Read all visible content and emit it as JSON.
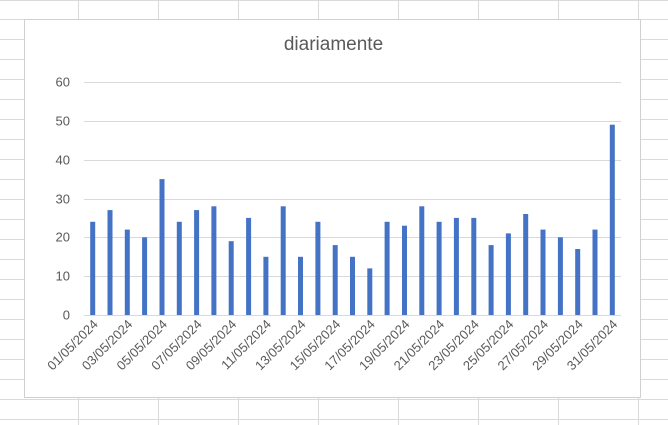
{
  "chart_data": {
    "type": "bar",
    "title": "diariamente",
    "xlabel": "",
    "ylabel": "",
    "ylim": [
      0,
      60
    ],
    "yticks": [
      0,
      10,
      20,
      30,
      40,
      50,
      60
    ],
    "grid": true,
    "bar_color": "#4472C4",
    "categories": [
      "01/05/2024",
      "02/05/2024",
      "03/05/2024",
      "04/05/2024",
      "05/05/2024",
      "06/05/2024",
      "07/05/2024",
      "08/05/2024",
      "09/05/2024",
      "10/05/2024",
      "11/05/2024",
      "12/05/2024",
      "13/05/2024",
      "14/05/2024",
      "15/05/2024",
      "16/05/2024",
      "17/05/2024",
      "18/05/2024",
      "19/05/2024",
      "20/05/2024",
      "21/05/2024",
      "22/05/2024",
      "23/05/2024",
      "24/05/2024",
      "25/05/2024",
      "26/05/2024",
      "27/05/2024",
      "28/05/2024",
      "29/05/2024",
      "30/05/2024",
      "31/05/2024"
    ],
    "shown_tick_labels": [
      "01/05/2024",
      "03/05/2024",
      "05/05/2024",
      "07/05/2024",
      "09/05/2024",
      "11/05/2024",
      "13/05/2024",
      "15/05/2024",
      "17/05/2024",
      "19/05/2024",
      "21/05/2024",
      "23/05/2024",
      "25/05/2024",
      "27/05/2024",
      "29/05/2024",
      "31/05/2024"
    ],
    "values": [
      24,
      27,
      22,
      20,
      35,
      24,
      27,
      28,
      19,
      25,
      15,
      28,
      15,
      24,
      18,
      15,
      12,
      24,
      23,
      28,
      24,
      25,
      25,
      18,
      21,
      26,
      22,
      20,
      17,
      22,
      49
    ]
  }
}
